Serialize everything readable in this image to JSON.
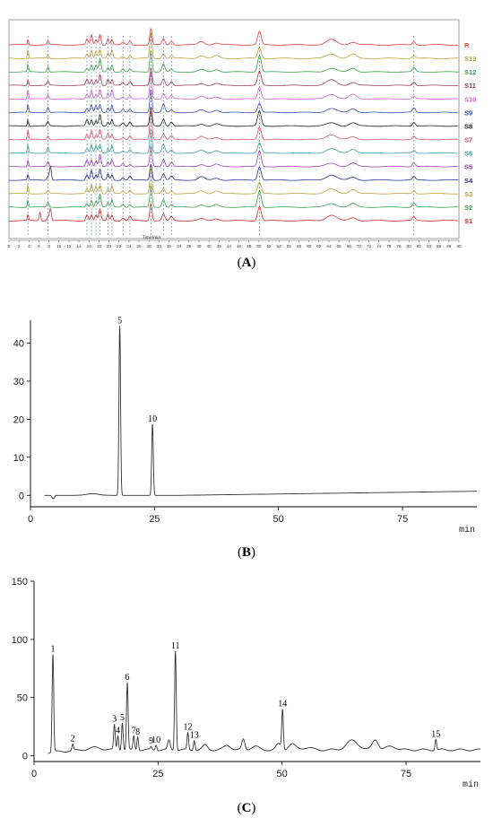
{
  "figure": {
    "panels": [
      {
        "id": "A",
        "label_open": "(",
        "label_letter": "A",
        "label_close": ")"
      },
      {
        "id": "B",
        "label_open": "(",
        "label_letter": "B",
        "label_close": ")"
      },
      {
        "id": "C",
        "label_open": "(",
        "label_letter": "C",
        "label_close": ")"
      }
    ]
  },
  "chart_data": [
    {
      "id": "A",
      "type": "line",
      "xlabel": "Time/min",
      "xlim": [
        0,
        90
      ],
      "x_ticks": [
        0,
        2,
        4,
        6,
        8,
        10,
        12,
        14,
        16,
        18,
        20,
        22,
        24,
        26,
        28,
        30,
        32,
        34,
        36,
        38,
        40,
        42,
        44,
        46,
        48,
        50,
        52,
        54,
        56,
        58,
        60,
        62,
        64,
        66,
        68,
        70,
        72,
        74,
        76,
        78,
        80,
        82,
        84,
        86,
        88,
        90
      ],
      "series": [
        {
          "name": "R",
          "color": "#e0403c"
        },
        {
          "name": "S13",
          "color": "#b9a23a"
        },
        {
          "name": "S12",
          "color": "#3aa24a"
        },
        {
          "name": "S11",
          "color": "#9b3a5a"
        },
        {
          "name": "S10",
          "color": "#d05ad0"
        },
        {
          "name": "S9",
          "color": "#3a4ab0"
        },
        {
          "name": "S8",
          "color": "#222222"
        },
        {
          "name": "S7",
          "color": "#e0506a"
        },
        {
          "name": "S6",
          "color": "#3aa0a0"
        },
        {
          "name": "S5",
          "color": "#9a3ab0"
        },
        {
          "name": "S4",
          "color": "#2a2a8a"
        },
        {
          "name": "S3",
          "color": "#b9a23a"
        },
        {
          "name": "S2",
          "color": "#3aa24a"
        },
        {
          "name": "S1",
          "color": "#d02a2a"
        }
      ],
      "common_peaks_min": [
        3.8,
        7.8,
        15.6,
        16.5,
        17.4,
        18.2,
        19.8,
        20.6,
        22.8,
        24.2,
        28.4,
        30.9,
        32.5,
        50.1,
        81.0
      ],
      "legend": "right"
    },
    {
      "id": "B",
      "type": "line",
      "xlabel": "min",
      "xlim": [
        0,
        90
      ],
      "ylim": [
        -3,
        46
      ],
      "x_ticks": [
        0,
        25,
        50,
        75
      ],
      "y_ticks": [
        0,
        10,
        20,
        30,
        40
      ],
      "peaks": [
        {
          "label": "5",
          "x": 18.0,
          "y": 44.5
        },
        {
          "label": "10",
          "x": 24.6,
          "y": 18.7
        }
      ]
    },
    {
      "id": "C",
      "type": "line",
      "xlabel": "min",
      "xlim": [
        0,
        90
      ],
      "ylim": [
        -5,
        150
      ],
      "x_ticks": [
        0,
        25,
        50,
        75
      ],
      "y_ticks": [
        0,
        50,
        100,
        150
      ],
      "peaks": [
        {
          "label": "1",
          "x": 3.8,
          "y": 87
        },
        {
          "label": "2",
          "x": 7.8,
          "y": 10
        },
        {
          "label": "3",
          "x": 16.2,
          "y": 27
        },
        {
          "label": "4",
          "x": 16.9,
          "y": 17
        },
        {
          "label": "5",
          "x": 17.8,
          "y": 28
        },
        {
          "label": "6",
          "x": 18.8,
          "y": 63
        },
        {
          "label": "7",
          "x": 20.1,
          "y": 17
        },
        {
          "label": "8",
          "x": 20.9,
          "y": 16
        },
        {
          "label": "9",
          "x": 23.6,
          "y": 8
        },
        {
          "label": "10",
          "x": 24.6,
          "y": 9
        },
        {
          "label": "11",
          "x": 28.5,
          "y": 90
        },
        {
          "label": "12",
          "x": 31.0,
          "y": 20
        },
        {
          "label": "13",
          "x": 32.3,
          "y": 13
        },
        {
          "label": "14",
          "x": 50.1,
          "y": 40
        },
        {
          "label": "15",
          "x": 81.0,
          "y": 14
        }
      ]
    }
  ]
}
